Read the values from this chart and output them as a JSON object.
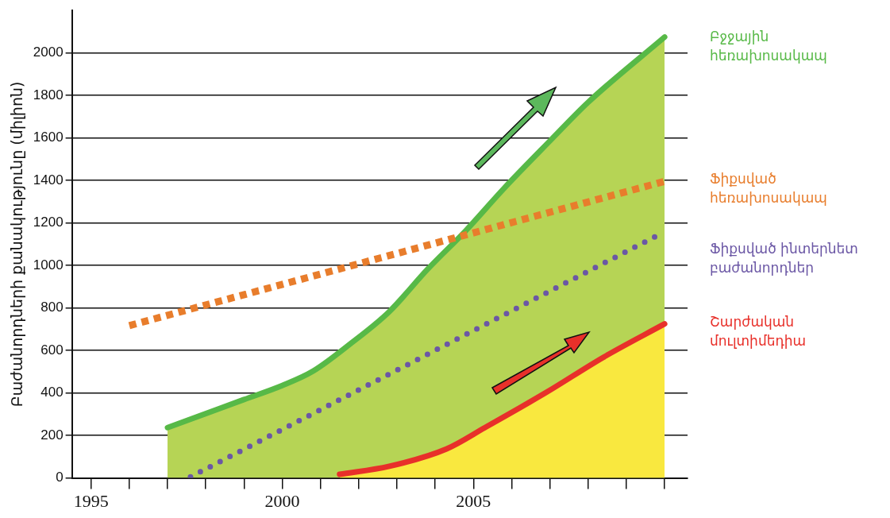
{
  "chart_data": {
    "type": "line",
    "ylabel": "Բաժանորդների քանակությունը (միլիոն)",
    "xlim": [
      1994.5,
      2010.6
    ],
    "xticks": [
      1995,
      {
        "value": 1996,
        "label": null
      },
      {
        "value": 1997,
        "label": null
      },
      {
        "value": 1998,
        "label": null
      },
      {
        "value": 1999,
        "label": null
      },
      {
        "value": 2000,
        "label": "2000"
      },
      {
        "value": 2001,
        "label": null
      },
      {
        "value": 2002,
        "label": null
      },
      {
        "value": 2003,
        "label": null
      },
      {
        "value": 2004,
        "label": null
      },
      {
        "value": 2005,
        "label": "2005"
      },
      {
        "value": 2006,
        "label": null
      },
      {
        "value": 2007,
        "label": null
      },
      {
        "value": 2008,
        "label": null
      },
      {
        "value": 2009,
        "label": null
      },
      {
        "value": 2010,
        "label": null
      }
    ],
    "ylim": [
      0,
      2200
    ],
    "yticks": [
      0,
      200,
      400,
      600,
      800,
      1000,
      1200,
      1400,
      1600,
      1800,
      2000
    ],
    "grid": "y",
    "legend": false,
    "marker": "none",
    "series": [
      {
        "name": "Բջջային հեռախոսակապ",
        "type": "area",
        "color": "#57b947",
        "x": [
          1997,
          1999,
          2000,
          2000.8,
          2001.8,
          2002.8,
          2003.8,
          2004.8,
          2005.8,
          2007,
          2008,
          2010
        ],
        "values": [
          237,
          369,
          435,
          502,
          634,
          783,
          982,
          1164,
          1363,
          1586,
          1768,
          2075
        ]
      },
      {
        "name": "Ֆիքսված հեռախոսակապ",
        "type": "line",
        "line_style": "dashed",
        "color": "#e87d2c",
        "x": [
          1996,
          2010
        ],
        "values": [
          717,
          1396
        ]
      },
      {
        "name": "Ֆիքսված ինտերնետ բաժանորդներ",
        "type": "line",
        "line_style": "dotted",
        "color": "#6b57a5",
        "x": [
          1997.6,
          2009.8
        ],
        "values": [
          5,
          1140
        ]
      },
      {
        "name": "Շարժական մուլտիմեդիա",
        "type": "area",
        "color": "#e8302a",
        "x": [
          2001.5,
          2002.8,
          2004.3,
          2005.3,
          2006.9,
          2008.4,
          2010
        ],
        "values": [
          17,
          55,
          137,
          237,
          402,
          568,
          725
        ]
      }
    ]
  }
}
